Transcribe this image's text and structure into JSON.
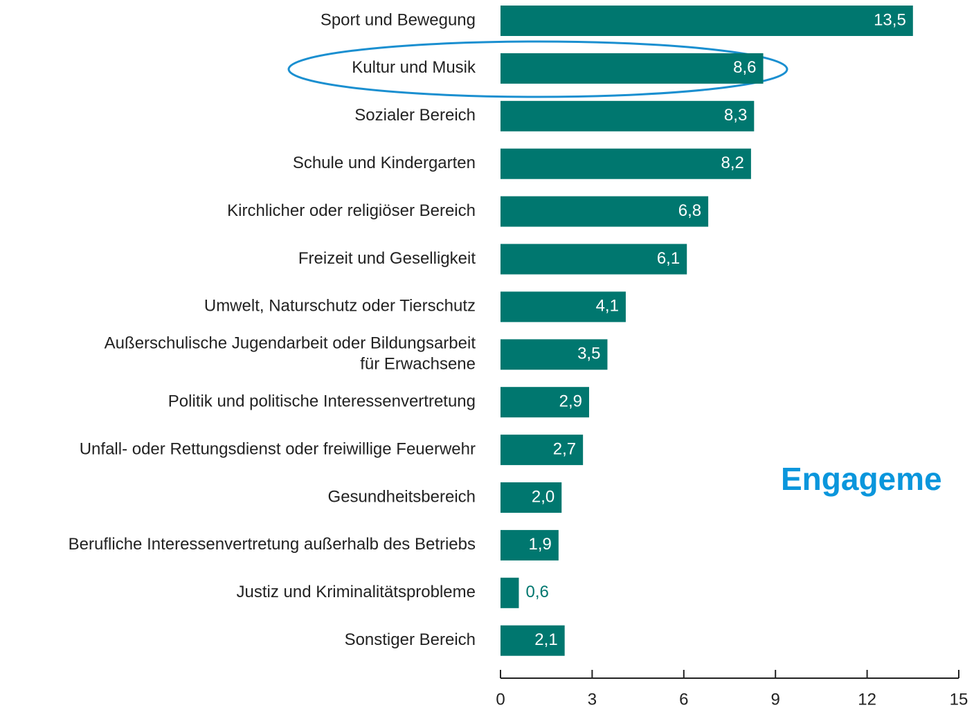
{
  "chart_data": {
    "type": "barh",
    "categories": [
      "Sport und Bewegung",
      "Kultur und Musik",
      "Sozialer Bereich",
      "Schule und Kindergarten",
      "Kirchlicher oder religiöser Bereich",
      "Freizeit und Geselligkeit",
      "Umwelt, Naturschutz oder Tierschutz",
      "Außerschulische Jugendarbeit oder Bildungsarbeit\nfür Erwachsene",
      "Politik und politische Interessenvertretung",
      "Unfall- oder Rettungsdienst oder freiwillige Feuerwehr",
      "Gesundheitsbereich",
      "Berufliche Interessenvertretung außerhalb des Betriebs",
      "Justiz und Kriminalitätsprobleme",
      "Sonstiger Bereich"
    ],
    "values": [
      13.5,
      8.6,
      8.3,
      8.2,
      6.8,
      6.1,
      4.1,
      3.5,
      2.9,
      2.7,
      2.0,
      1.9,
      0.6,
      2.1
    ],
    "value_labels": [
      "13,5",
      "8,6",
      "8,3",
      "8,2",
      "6,8",
      "6,1",
      "4,1",
      "3,5",
      "2,9",
      "2,7",
      "2,0",
      "1,9",
      "0,6",
      "2,1"
    ],
    "color": "#00776f",
    "xlim": [
      0,
      15
    ],
    "xticks": [
      0,
      3,
      6,
      9,
      12,
      15
    ],
    "annotation": "Engageme"
  }
}
